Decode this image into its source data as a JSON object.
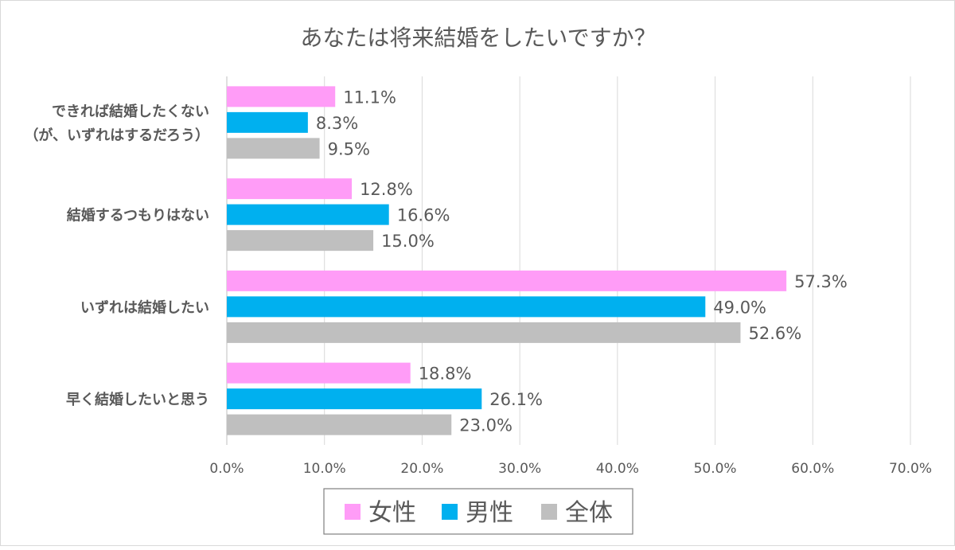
{
  "chart_data": {
    "type": "bar",
    "orientation": "horizontal",
    "title": "あなたは将来結婚をしたいですか？",
    "categories": [
      "できれば結婚したくない\n（が、いずれはするだろう）",
      "結婚するつもりはない",
      "いずれは結婚したい",
      "早く結婚したいと思う"
    ],
    "series": [
      {
        "name": "女性",
        "color": "#ff9cf7",
        "values": [
          11.1,
          12.8,
          57.3,
          18.8
        ],
        "labels": [
          "11.1%",
          "12.8%",
          "57.3%",
          "18.8%"
        ]
      },
      {
        "name": "男性",
        "color": "#00b0ef",
        "values": [
          8.3,
          16.6,
          49.0,
          26.1
        ],
        "labels": [
          "8.3%",
          "16.6%",
          "49.0%",
          "26.1%"
        ]
      },
      {
        "name": "全体",
        "color": "#bfbfbf",
        "values": [
          9.5,
          15.0,
          52.6,
          23.0
        ],
        "labels": [
          "9.5%",
          "15.0%",
          "52.6%",
          "23.0%"
        ]
      }
    ],
    "xlim": [
      0,
      70
    ],
    "xticks": [
      "0.0%",
      "10.0%",
      "20.0%",
      "30.0%",
      "40.0%",
      "50.0%",
      "60.0%",
      "70.0%"
    ],
    "grid": true,
    "legend_position": "bottom"
  }
}
